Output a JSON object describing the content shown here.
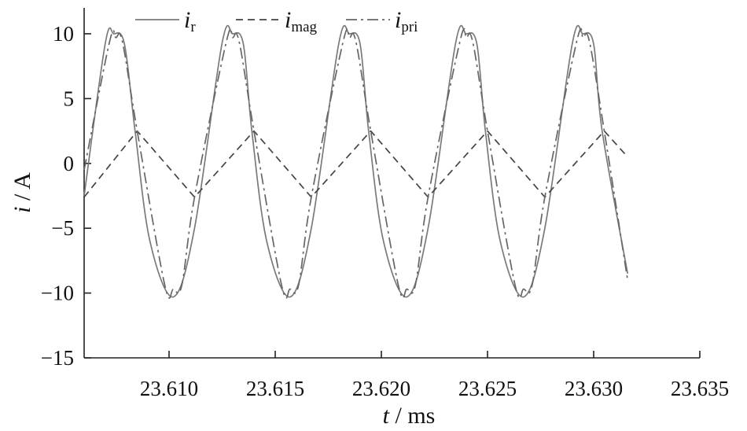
{
  "chart_data": {
    "type": "line",
    "xlabel": {
      "var": "t",
      "unit": " / ms"
    },
    "ylabel": {
      "var": "i",
      "unit": " / A"
    },
    "xlim": [
      23.606,
      23.635
    ],
    "ylim": [
      -15,
      12
    ],
    "xticks": [
      23.61,
      23.615,
      23.62,
      23.625,
      23.63,
      23.635
    ],
    "xtick_labels": [
      "23.610",
      "23.615",
      "23.620",
      "23.625",
      "23.630",
      "23.635"
    ],
    "yticks": [
      -15,
      -10,
      -5,
      0,
      5,
      10
    ],
    "ytick_labels": [
      "−15",
      "−10",
      "−5",
      "0",
      "5",
      "10"
    ],
    "grid": false,
    "legend_position": "top",
    "series": [
      {
        "name": "i_r",
        "name_main": "i",
        "name_sub": "r",
        "style": "solid",
        "color": "#7a7a7a",
        "x": [
          23.606,
          23.607,
          23.6074,
          23.6079,
          23.6084,
          23.6091,
          23.6102,
          23.6112,
          23.6125,
          23.613,
          23.6135,
          23.6139,
          23.6146,
          23.6157,
          23.6167,
          23.618,
          23.6185,
          23.619,
          23.6194,
          23.6201,
          23.6212,
          23.6222,
          23.6235,
          23.624,
          23.6245,
          23.6249,
          23.6256,
          23.6267,
          23.6277,
          23.629,
          23.6295,
          23.63,
          23.6304,
          23.6316
        ],
        "values": [
          -2.5,
          9.3,
          10.0,
          9.2,
          2.5,
          -6.0,
          -10.3,
          -5.0,
          9.3,
          10.0,
          9.2,
          2.5,
          -6.0,
          -10.3,
          -5.0,
          9.3,
          10.0,
          9.2,
          2.5,
          -6.0,
          -10.3,
          -5.0,
          9.3,
          10.0,
          9.2,
          2.5,
          -6.0,
          -10.3,
          -5.0,
          9.3,
          10.0,
          9.2,
          2.5,
          -8.5
        ]
      },
      {
        "name": "i_mag",
        "name_main": "i",
        "name_sub": "mag",
        "style": "dashed",
        "color": "#444444",
        "x": [
          23.606,
          23.6085,
          23.6112,
          23.614,
          23.6167,
          23.6195,
          23.6222,
          23.625,
          23.6277,
          23.6305,
          23.6316
        ],
        "values": [
          -2.6,
          2.5,
          -2.6,
          2.5,
          -2.6,
          2.5,
          -2.6,
          2.5,
          -2.6,
          2.5,
          0.5
        ]
      },
      {
        "name": "i_pri",
        "name_main": "i",
        "name_sub": "pri",
        "style": "dashdot",
        "color": "#666666",
        "x": [
          23.606,
          23.6072,
          23.6075,
          23.6078,
          23.6085,
          23.6098,
          23.6102,
          23.6106,
          23.6112,
          23.6127,
          23.613,
          23.6133,
          23.614,
          23.6153,
          23.6157,
          23.6161,
          23.6167,
          23.6182,
          23.6185,
          23.6188,
          23.6195,
          23.6208,
          23.6212,
          23.6216,
          23.6222,
          23.6237,
          23.624,
          23.6243,
          23.625,
          23.6263,
          23.6267,
          23.6271,
          23.6277,
          23.6292,
          23.6295,
          23.6298,
          23.6305,
          23.6316
        ],
        "values": [
          -0.5,
          9.4,
          9.7,
          9.4,
          2.5,
          -9.4,
          -9.7,
          -9.4,
          -2.6,
          9.4,
          9.7,
          9.4,
          2.5,
          -9.4,
          -9.7,
          -9.4,
          -2.6,
          9.4,
          9.7,
          9.4,
          2.5,
          -9.4,
          -9.7,
          -9.4,
          -2.6,
          9.4,
          9.7,
          9.4,
          2.5,
          -9.4,
          -9.7,
          -9.4,
          -2.6,
          9.4,
          9.7,
          9.4,
          2.5,
          -9.0
        ]
      }
    ]
  }
}
